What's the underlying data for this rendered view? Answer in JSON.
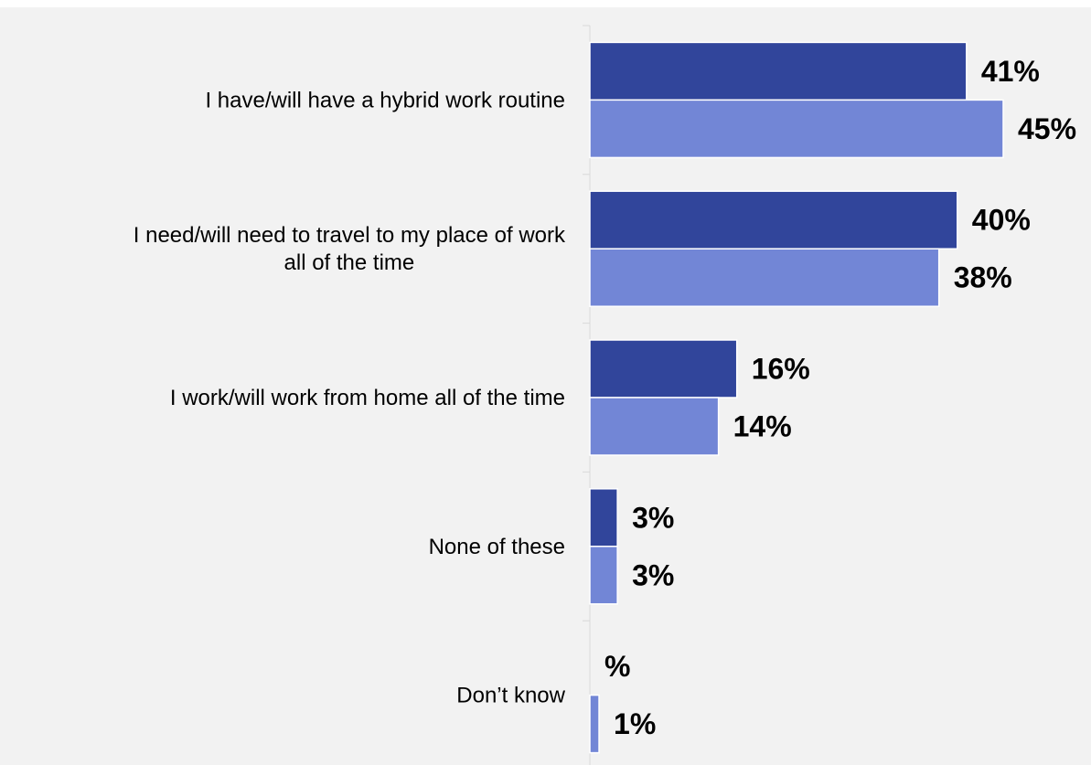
{
  "chart_data": {
    "type": "bar",
    "orientation": "horizontal",
    "categories": [
      [
        "I have/will have a hybrid work routine"
      ],
      [
        "I need/will need to travel to my place of work",
        "all of the time"
      ],
      [
        "I work/will work from home all of the time"
      ],
      [
        "None of these"
      ],
      [
        "Don’t know"
      ]
    ],
    "series": [
      {
        "color": "#31459b",
        "values": [
          41,
          40,
          16,
          3,
          0
        ],
        "labels": [
          "41%",
          "40%",
          "16%",
          "3%",
          "%"
        ]
      },
      {
        "color": "#7286d6",
        "values": [
          45,
          38,
          14,
          3,
          1
        ],
        "labels": [
          "45%",
          "38%",
          "14%",
          "3%",
          "1%"
        ]
      }
    ],
    "xlim": [
      0,
      45
    ],
    "grid": false,
    "legend": "none"
  }
}
